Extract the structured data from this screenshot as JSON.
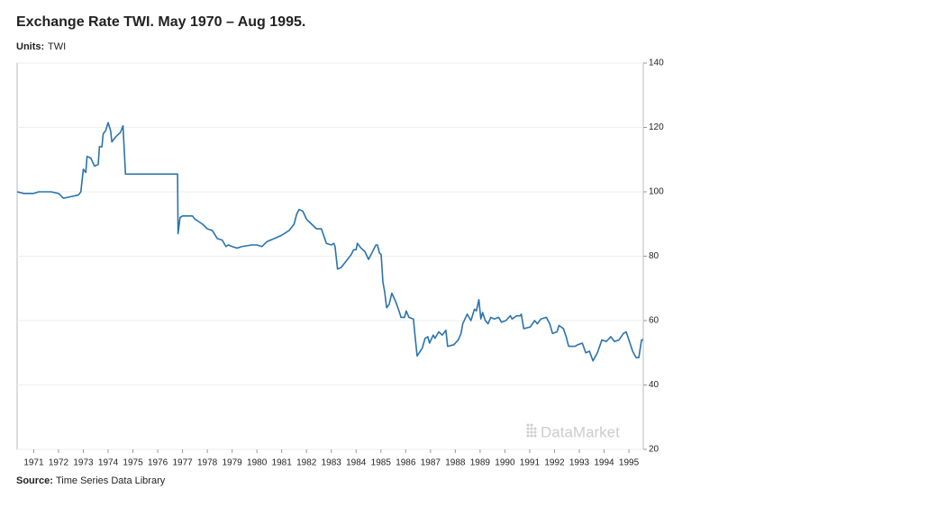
{
  "chart_data": {
    "type": "line",
    "title": "Exchange Rate TWI. May 1970 – Aug 1995.",
    "units_label": "Units:",
    "units": "TWI",
    "source_label": "Source:",
    "source": "Time Series Data Library",
    "watermark": "DataMarket",
    "color": "#2a73ad",
    "x": [
      1970.33,
      1970.6,
      1971.0,
      1971.2,
      1971.7,
      1972.0,
      1972.2,
      1972.5,
      1972.8,
      1972.9,
      1973.0,
      1973.1,
      1973.15,
      1973.3,
      1973.45,
      1973.6,
      1973.65,
      1973.75,
      1973.8,
      1973.9,
      1974.0,
      1974.1,
      1974.15,
      1974.3,
      1974.5,
      1974.6,
      1974.7,
      1976.8,
      1976.82,
      1976.9,
      1977.0,
      1977.4,
      1977.5,
      1977.8,
      1978.0,
      1978.2,
      1978.4,
      1978.6,
      1978.75,
      1978.85,
      1979.0,
      1979.2,
      1979.4,
      1979.8,
      1980.0,
      1980.2,
      1980.4,
      1980.7,
      1981.0,
      1981.3,
      1981.5,
      1981.6,
      1981.7,
      1981.85,
      1982.0,
      1982.2,
      1982.4,
      1982.6,
      1982.8,
      1983.0,
      1983.1,
      1983.15,
      1983.25,
      1983.4,
      1983.6,
      1983.8,
      1983.9,
      1984.0,
      1984.05,
      1984.2,
      1984.35,
      1984.5,
      1984.6,
      1984.8,
      1984.86,
      1984.94,
      1985.01,
      1985.08,
      1985.15,
      1985.23,
      1985.33,
      1985.44,
      1985.59,
      1985.73,
      1985.81,
      1985.95,
      1986.02,
      1986.13,
      1986.31,
      1986.38,
      1986.46,
      1986.67,
      1986.78,
      1986.89,
      1986.96,
      1987.11,
      1987.18,
      1987.33,
      1987.47,
      1987.62,
      1987.69,
      1987.94,
      1988.12,
      1988.23,
      1988.3,
      1988.48,
      1988.63,
      1988.77,
      1988.85,
      1988.95,
      1989.03,
      1989.1,
      1989.21,
      1989.32,
      1989.43,
      1989.57,
      1989.75,
      1989.86,
      1990.04,
      1990.22,
      1990.29,
      1990.48,
      1990.62,
      1990.66,
      1990.76,
      1991.02,
      1991.2,
      1991.31,
      1991.45,
      1991.67,
      1991.81,
      1991.92,
      1992.1,
      1992.18,
      1992.36,
      1992.47,
      1992.57,
      1992.83,
      1992.94,
      1993.12,
      1993.26,
      1993.41,
      1993.55,
      1993.73,
      1993.91,
      1994.09,
      1994.27,
      1994.42,
      1994.6,
      1994.78,
      1994.89,
      1995.0,
      1995.15,
      1995.29,
      1995.4,
      1995.51,
      1995.58
    ],
    "values": [
      100,
      99.5,
      99.5,
      100,
      100,
      99.5,
      98,
      98.5,
      99,
      100,
      107,
      106,
      111,
      110.5,
      108,
      108.5,
      114,
      114,
      118,
      119,
      121.5,
      119,
      115.5,
      117,
      118.5,
      120.5,
      105.5,
      105.5,
      87,
      92,
      92.5,
      92.5,
      91.5,
      90,
      88.5,
      88,
      85.5,
      85,
      83,
      83.5,
      83,
      82.5,
      83,
      83.5,
      83.5,
      83,
      84.5,
      85.5,
      86.5,
      88,
      90,
      93,
      94.5,
      94,
      91.5,
      90,
      88.5,
      88.5,
      84,
      83.5,
      84,
      83,
      76,
      76.5,
      78.5,
      80.5,
      82,
      82,
      84,
      82.5,
      81.5,
      79,
      80.5,
      83.5,
      83.5,
      81,
      80.5,
      72,
      69,
      64,
      65,
      68.5,
      66,
      63,
      61,
      61,
      63,
      61,
      60.5,
      55,
      49,
      51.5,
      54.5,
      55,
      53,
      55.5,
      54.5,
      56.5,
      55.5,
      57,
      52,
      52.5,
      54,
      56,
      59,
      62,
      60,
      63.5,
      63,
      66.5,
      60.5,
      62.5,
      60,
      59,
      61,
      60.5,
      61,
      59.5,
      60,
      61.5,
      60.5,
      61.5,
      61.5,
      62,
      57.5,
      58,
      60,
      59,
      60.5,
      61,
      59,
      56,
      56.5,
      58.5,
      57.5,
      55,
      52,
      52,
      52.5,
      53,
      50,
      50.5,
      47.5,
      50,
      54,
      53.5,
      55,
      53.5,
      54,
      56,
      56.5,
      54,
      50.5,
      48.5,
      48.5,
      54,
      54
    ],
    "xlim": [
      1970.33,
      1995.58
    ],
    "xticks": [
      1971,
      1972,
      1973,
      1974,
      1975,
      1976,
      1977,
      1978,
      1979,
      1980,
      1981,
      1982,
      1983,
      1984,
      1985,
      1986,
      1987,
      1988,
      1989,
      1990,
      1991,
      1992,
      1993,
      1994,
      1995
    ],
    "ylim": [
      20,
      140
    ],
    "yticks": [
      20,
      40,
      60,
      80,
      100,
      120,
      140
    ],
    "grid": true
  }
}
